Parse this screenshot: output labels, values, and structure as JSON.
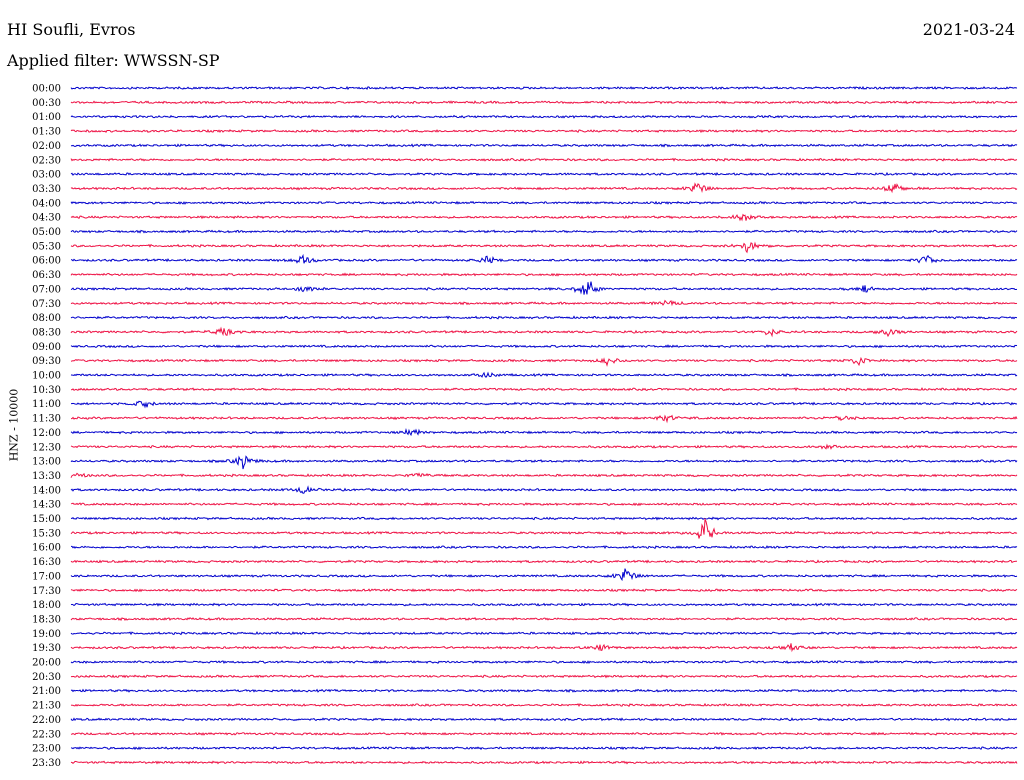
{
  "header": {
    "station": "HI Soufli, Evros",
    "date": "2021-03-24",
    "filter_label": "Applied filter: WWSSN-SP"
  },
  "chart_data": {
    "type": "line",
    "title": "HI Soufli, Evros",
    "subtitle": "Applied filter: WWSSN-SP",
    "date": "2021-03-24",
    "ylabel": "HNZ - 10000",
    "xlabel": "",
    "grid": false,
    "legend": "none",
    "colors": {
      "even_rows": "#0000cc",
      "odd_rows": "#ee1144"
    },
    "rows": [
      {
        "label": "00:00"
      },
      {
        "label": "00:30"
      },
      {
        "label": "01:00"
      },
      {
        "label": "01:30"
      },
      {
        "label": "02:00"
      },
      {
        "label": "02:30"
      },
      {
        "label": "03:00"
      },
      {
        "label": "03:30"
      },
      {
        "label": "04:00"
      },
      {
        "label": "04:30"
      },
      {
        "label": "05:00"
      },
      {
        "label": "05:30"
      },
      {
        "label": "06:00"
      },
      {
        "label": "06:30"
      },
      {
        "label": "07:00"
      },
      {
        "label": "07:30"
      },
      {
        "label": "08:00"
      },
      {
        "label": "08:30"
      },
      {
        "label": "09:00"
      },
      {
        "label": "09:30"
      },
      {
        "label": "10:00"
      },
      {
        "label": "10:30"
      },
      {
        "label": "11:00"
      },
      {
        "label": "11:30"
      },
      {
        "label": "12:00"
      },
      {
        "label": "12:30"
      },
      {
        "label": "13:00"
      },
      {
        "label": "13:30"
      },
      {
        "label": "14:00"
      },
      {
        "label": "14:30"
      },
      {
        "label": "15:00"
      },
      {
        "label": "15:30"
      },
      {
        "label": "16:00"
      },
      {
        "label": "16:30"
      },
      {
        "label": "17:00"
      },
      {
        "label": "17:30"
      },
      {
        "label": "18:00"
      },
      {
        "label": "18:30"
      },
      {
        "label": "19:00"
      },
      {
        "label": "19:30"
      },
      {
        "label": "20:00"
      },
      {
        "label": "20:30"
      },
      {
        "label": "21:00"
      },
      {
        "label": "21:30"
      },
      {
        "label": "22:00"
      },
      {
        "label": "22:30"
      },
      {
        "label": "23:00"
      },
      {
        "label": "23:30"
      }
    ],
    "events": [
      {
        "row": 7,
        "t": 0.663,
        "amp": 9
      },
      {
        "row": 7,
        "t": 0.87,
        "amp": 8
      },
      {
        "row": 9,
        "t": 0.711,
        "amp": 7
      },
      {
        "row": 11,
        "t": 0.715,
        "amp": 9
      },
      {
        "row": 12,
        "t": 0.245,
        "amp": 7
      },
      {
        "row": 12,
        "t": 0.44,
        "amp": 5
      },
      {
        "row": 12,
        "t": 0.905,
        "amp": 6
      },
      {
        "row": 14,
        "t": 0.245,
        "amp": 4
      },
      {
        "row": 14,
        "t": 0.545,
        "amp": 14
      },
      {
        "row": 14,
        "t": 0.84,
        "amp": 4
      },
      {
        "row": 15,
        "t": 0.63,
        "amp": 4
      },
      {
        "row": 17,
        "t": 0.16,
        "amp": 6
      },
      {
        "row": 17,
        "t": 0.74,
        "amp": 5
      },
      {
        "row": 17,
        "t": 0.865,
        "amp": 5
      },
      {
        "row": 19,
        "t": 0.568,
        "amp": 5
      },
      {
        "row": 19,
        "t": 0.83,
        "amp": 7
      },
      {
        "row": 20,
        "t": 0.44,
        "amp": 4
      },
      {
        "row": 22,
        "t": 0.078,
        "amp": 5
      },
      {
        "row": 23,
        "t": 0.63,
        "amp": 5
      },
      {
        "row": 23,
        "t": 0.815,
        "amp": 5
      },
      {
        "row": 24,
        "t": 0.36,
        "amp": 5
      },
      {
        "row": 25,
        "t": 0.8,
        "amp": 3
      },
      {
        "row": 26,
        "t": 0.182,
        "amp": 8
      },
      {
        "row": 27,
        "t": 0.005,
        "amp": 3
      },
      {
        "row": 27,
        "t": 0.37,
        "amp": 3
      },
      {
        "row": 28,
        "t": 0.245,
        "amp": 5
      },
      {
        "row": 31,
        "t": 0.67,
        "amp": 15
      },
      {
        "row": 34,
        "t": 0.587,
        "amp": 11
      },
      {
        "row": 39,
        "t": 0.56,
        "amp": 4
      },
      {
        "row": 39,
        "t": 0.76,
        "amp": 4
      }
    ]
  }
}
